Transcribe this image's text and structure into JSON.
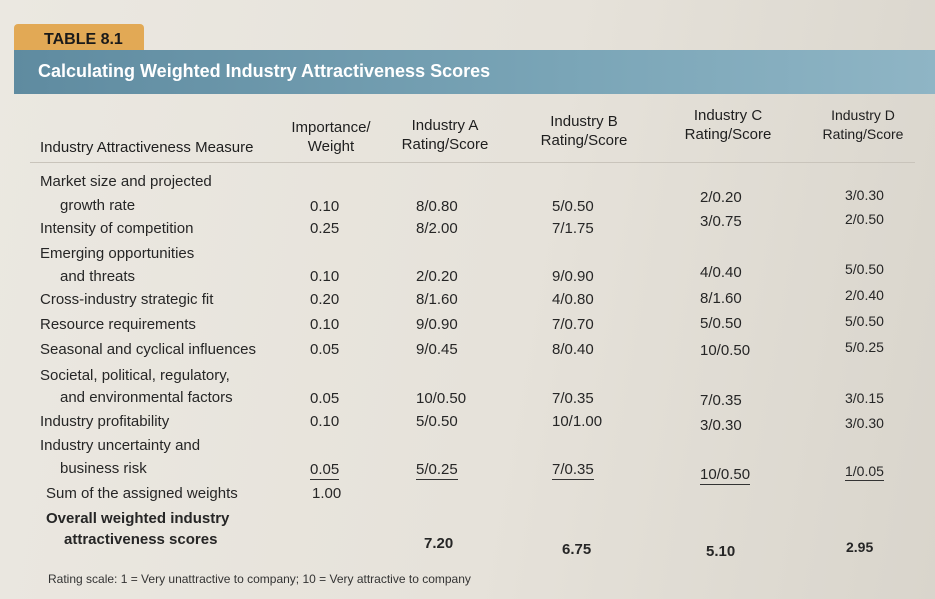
{
  "table_label": "TABLE 8.1",
  "title": "Calculating Weighted Industry Attractiveness Scores",
  "headers": {
    "measure": "Industry Attractiveness Measure",
    "importance_1": "Importance/",
    "importance_2": "Weight",
    "a_1": "Industry A",
    "a_2": "Rating/Score",
    "b_1": "Industry B",
    "b_2": "Rating/Score",
    "c_1": "Industry C",
    "c_2": "Rating/Score",
    "d_1": "Industry D",
    "d_2": "Rating/Score"
  },
  "rows": [
    {
      "label1": "Market size and projected",
      "label2": "growth rate",
      "weight": "0.10",
      "a": "8/0.80",
      "b": "5/0.50",
      "c": "2/0.20",
      "d": "3/0.30"
    },
    {
      "label1": "Intensity of competition",
      "weight": "0.25",
      "a": "8/2.00",
      "b": "7/1.75",
      "c": "3/0.75",
      "d": "2/0.50"
    },
    {
      "label1": "Emerging opportunities",
      "label2": "and threats",
      "weight": "0.10",
      "a": "2/0.20",
      "b": "9/0.90",
      "c": "4/0.40",
      "d": "5/0.50"
    },
    {
      "label1": "Cross-industry strategic fit",
      "weight": "0.20",
      "a": "8/1.60",
      "b": "4/0.80",
      "c": "8/1.60",
      "d": "2/0.40"
    },
    {
      "label1": "Resource requirements",
      "weight": "0.10",
      "a": "9/0.90",
      "b": "7/0.70",
      "c": "5/0.50",
      "d": "5/0.50"
    },
    {
      "label1": "Seasonal and cyclical influences",
      "weight": "0.05",
      "a": "9/0.45",
      "b": "8/0.40",
      "c": "10/0.50",
      "d": "5/0.25"
    },
    {
      "label1": "Societal, political, regulatory,",
      "label2": "and environmental factors",
      "weight": "0.05",
      "a": "10/0.50",
      "b": "7/0.35",
      "c": "7/0.35",
      "d": "3/0.15"
    },
    {
      "label1": "Industry profitability",
      "weight": "0.10",
      "a": "5/0.50",
      "b": "10/1.00",
      "c": "3/0.30",
      "d": "3/0.30"
    },
    {
      "label1": "Industry uncertainty and",
      "label2": "business risk",
      "weight": "0.05",
      "a": "5/0.25",
      "b": "7/0.35",
      "c": "10/0.50",
      "d": "1/0.05"
    }
  ],
  "sum_label": "Sum of the assigned weights",
  "sum_value": "1.00",
  "overall_label_1": "Overall weighted industry",
  "overall_label_2": "attractiveness scores",
  "overall": {
    "a": "7.20",
    "b": "6.75",
    "c": "5.10",
    "d": "2.95"
  },
  "footnote": "Rating scale: 1 = Very unattractive to company; 10 = Very attractive to company",
  "colors": {
    "tab": "#e2a955",
    "banner": "#6f9aae"
  }
}
